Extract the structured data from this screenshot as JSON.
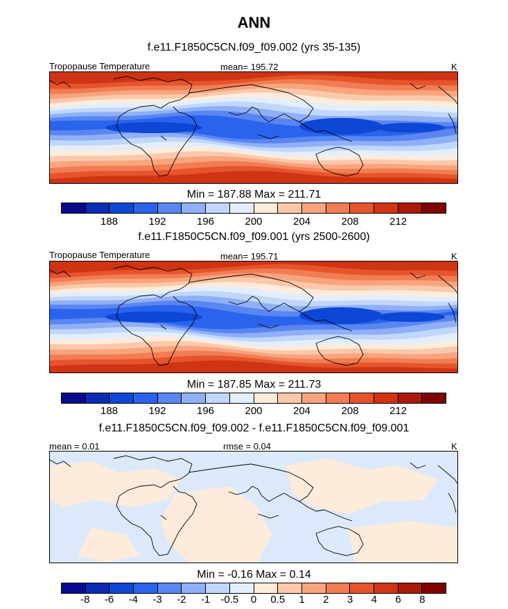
{
  "title": "ANN",
  "colors": {
    "abs_scale": [
      "#0a0a8c",
      "#0b2cb3",
      "#0d47d6",
      "#2a63ec",
      "#5a86f2",
      "#8fb0f7",
      "#c1d6fb",
      "#e3eefc",
      "#fdebdc",
      "#fbc8aa",
      "#f8a47e",
      "#f27d52",
      "#e6542c",
      "#cf3414",
      "#ab1a0a",
      "#800303"
    ],
    "diff_scale": [
      "#0a0a8c",
      "#0b2cb3",
      "#0d47d6",
      "#2a63ec",
      "#5a86f2",
      "#8fb0f7",
      "#c1d6fb",
      "#e3eefc",
      "#fdebdc",
      "#fbc8aa",
      "#f8a47e",
      "#f27d52",
      "#e6542c",
      "#cf3414",
      "#ab1a0a",
      "#800303"
    ],
    "diff_pos": "#fdebdc",
    "diff_neg": "#dbe9fb"
  },
  "chart_data": [
    {
      "type": "heatmap",
      "title": "f.e11.F1850C5CN.f09_f09.002 (yrs 35-135)",
      "left_label": "Tropopause Temperature",
      "mean_label": "mean= 195.72",
      "units": "K",
      "min_max": "Min = 187.88 Max = 211.71",
      "min": 187.88,
      "max": 211.71,
      "mean": 195.72,
      "colorbar_ticks": [
        "188",
        "192",
        "196",
        "200",
        "204",
        "208",
        "212"
      ],
      "colorbar_tick_boundaries": [
        2,
        4,
        6,
        8,
        10,
        12,
        14
      ]
    },
    {
      "type": "heatmap",
      "title": "f.e11.F1850C5CN.f09_f09.001 (yrs 2500-2600)",
      "left_label": "Tropopause Temperature",
      "mean_label": "mean= 195.71",
      "units": "K",
      "min_max": "Min = 187.85 Max = 211.73",
      "min": 187.85,
      "max": 211.73,
      "mean": 195.71,
      "colorbar_ticks": [
        "188",
        "192",
        "196",
        "200",
        "204",
        "208",
        "212"
      ],
      "colorbar_tick_boundaries": [
        2,
        4,
        6,
        8,
        10,
        12,
        14
      ]
    },
    {
      "type": "heatmap",
      "title": "f.e11.F1850C5CN.f09_f09.002 - f.e11.F1850C5CN.f09_f09.001",
      "left_label": "mean =   0.01",
      "mean_label": "rmse =   0.04",
      "units": "K",
      "min_max": "Min =  -0.16 Max =   0.14",
      "min": -0.16,
      "max": 0.14,
      "mean": 0.01,
      "rmse": 0.04,
      "colorbar_ticks": [
        "-8",
        "-6",
        "-4",
        "-3",
        "-2",
        "-1",
        "-0.5",
        "0",
        "0.5",
        "1",
        "2",
        "3",
        "4",
        "6",
        "8"
      ],
      "colorbar_tick_boundaries": [
        1,
        2,
        3,
        4,
        5,
        6,
        7,
        8,
        9,
        10,
        11,
        12,
        13,
        14,
        15
      ]
    }
  ]
}
